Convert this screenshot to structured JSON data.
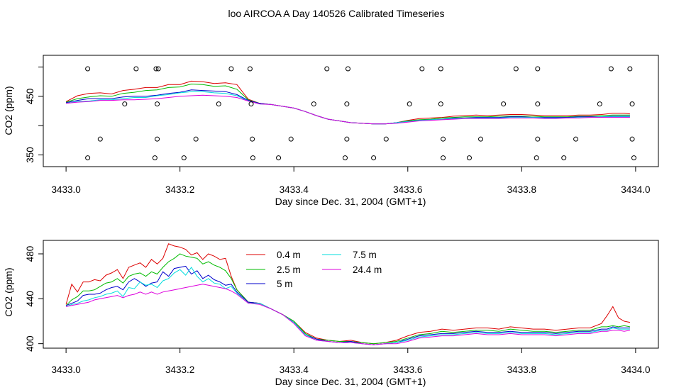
{
  "title": "loo AIRCOA A  Day 140526  Calibrated Timeseries",
  "colors": {
    "0.4 m": "#dd0000",
    "2.5 m": "#00bb00",
    "5 m": "#0000cc",
    "7.5 m": "#00dddd",
    "24.4 m": "#dd00dd"
  },
  "chart_data": [
    {
      "type": "line",
      "xlabel": "Day since Dec. 31, 2004 (GMT+1)",
      "ylabel": "CO2 (ppm)",
      "xlim": [
        3432.96,
        3434.04
      ],
      "ylim": [
        330,
        520
      ],
      "x_ticks": [
        "3433.0",
        "3433.2",
        "3433.4",
        "3433.6",
        "3433.8",
        "3434.0"
      ],
      "y_ticks": [
        "350",
        "450"
      ],
      "x": [
        3433.0,
        3433.02,
        3433.04,
        3433.06,
        3433.08,
        3433.1,
        3433.12,
        3433.14,
        3433.16,
        3433.18,
        3433.2,
        3433.22,
        3433.24,
        3433.26,
        3433.28,
        3433.3,
        3433.32,
        3433.34,
        3433.36,
        3433.38,
        3433.4,
        3433.42,
        3433.44,
        3433.46,
        3433.48,
        3433.5,
        3433.52,
        3433.54,
        3433.56,
        3433.58,
        3433.6,
        3433.62,
        3433.64,
        3433.66,
        3433.68,
        3433.7,
        3433.72,
        3433.74,
        3433.76,
        3433.78,
        3433.8,
        3433.82,
        3433.84,
        3433.86,
        3433.88,
        3433.9,
        3433.92,
        3433.94,
        3433.96,
        3433.98,
        3433.99
      ],
      "series": [
        {
          "name": "0.4 m",
          "values": [
            441,
            451,
            455,
            456,
            454,
            460,
            462,
            465,
            465,
            470,
            470,
            476,
            475,
            472,
            473,
            470,
            445,
            438,
            436,
            433,
            430,
            424,
            417,
            411,
            408,
            405,
            404,
            403,
            403,
            405,
            409,
            412,
            413,
            414,
            416,
            417,
            418,
            417,
            418,
            419,
            419,
            418,
            417,
            417,
            417,
            418,
            418,
            419,
            421,
            421,
            420
          ]
        },
        {
          "name": "2.5 m",
          "values": [
            440,
            446,
            449,
            451,
            450,
            455,
            457,
            460,
            461,
            465,
            466,
            471,
            470,
            467,
            468,
            462,
            444,
            438,
            436,
            433,
            430,
            424,
            417,
            411,
            408,
            405,
            404,
            403,
            403,
            405,
            408,
            410,
            411,
            413,
            414,
            415,
            415,
            415,
            416,
            416,
            416,
            416,
            415,
            415,
            415,
            416,
            416,
            417,
            418,
            418,
            418
          ]
        },
        {
          "name": "5 m",
          "values": [
            439,
            443,
            446,
            446,
            446,
            449,
            450,
            450,
            452,
            455,
            457,
            461,
            460,
            459,
            458,
            453,
            443,
            438,
            436,
            433,
            430,
            424,
            417,
            411,
            408,
            405,
            404,
            403,
            403,
            405,
            407,
            409,
            410,
            411,
            413,
            413,
            414,
            414,
            414,
            415,
            415,
            414,
            414,
            414,
            414,
            415,
            415,
            415,
            416,
            416,
            416
          ]
        },
        {
          "name": "7.5 m",
          "values": [
            438,
            441,
            442,
            444,
            444,
            446,
            448,
            448,
            451,
            453,
            456,
            458,
            458,
            456,
            455,
            451,
            442,
            437,
            436,
            433,
            430,
            424,
            417,
            411,
            408,
            405,
            404,
            403,
            403,
            405,
            407,
            409,
            410,
            411,
            412,
            413,
            413,
            413,
            413,
            414,
            414,
            414,
            413,
            413,
            413,
            414,
            414,
            415,
            415,
            415,
            415
          ]
        },
        {
          "name": "24.4 m",
          "values": [
            438,
            440,
            441,
            443,
            443,
            444,
            444,
            445,
            446,
            448,
            450,
            451,
            452,
            451,
            450,
            448,
            442,
            437,
            436,
            433,
            430,
            424,
            417,
            411,
            408,
            405,
            404,
            403,
            403,
            404,
            406,
            408,
            409,
            410,
            411,
            412,
            412,
            412,
            412,
            413,
            413,
            413,
            412,
            412,
            413,
            413,
            414,
            414,
            414,
            414,
            414
          ]
        }
      ],
      "points": {
        "x": [
          3433.038,
          3433.123,
          3433.158,
          3433.162,
          3433.29,
          3433.323,
          3433.458,
          3433.495,
          3433.625,
          3433.658,
          3433.79,
          3433.828,
          3433.957,
          3433.99,
          3433.103,
          3433.16,
          3433.268,
          3433.325,
          3433.435,
          3433.493,
          3433.603,
          3433.658,
          3433.768,
          3433.828,
          3433.937,
          3433.994,
          3433.06,
          3433.16,
          3433.228,
          3433.327,
          3433.395,
          3433.493,
          3433.562,
          3433.662,
          3433.728,
          3433.828,
          3433.895,
          3433.994,
          3433.038,
          3433.156,
          3433.207,
          3433.328,
          3433.373,
          3433.49,
          3433.54,
          3433.662,
          3433.708,
          3433.826,
          3433.874,
          3433.997
        ],
        "y": [
          497,
          497,
          497,
          497,
          497,
          497,
          497,
          497,
          497,
          497,
          497,
          497,
          497,
          497,
          437,
          437,
          437,
          437,
          437,
          437,
          437,
          437,
          437,
          437,
          437,
          437,
          377,
          377,
          377,
          377,
          377,
          377,
          377,
          377,
          377,
          377,
          377,
          377,
          345,
          345,
          345,
          345,
          345,
          345,
          345,
          345,
          345,
          345,
          345,
          345
        ]
      }
    },
    {
      "type": "line",
      "xlabel": "Day since Dec. 31, 2004 (GMT+1)",
      "ylabel": "CO2 (ppm)",
      "xlim": [
        3432.96,
        3434.04
      ],
      "ylim": [
        396,
        492
      ],
      "x_ticks": [
        "3433.0",
        "3433.2",
        "3433.4",
        "3433.6",
        "3433.8",
        "3434.0"
      ],
      "y_ticks": [
        "400",
        "440",
        "480"
      ],
      "legend": [
        "0.4 m",
        "2.5 m",
        "5 m",
        "7.5 m",
        "24.4 m"
      ],
      "x": [
        3433.0,
        3433.01,
        3433.02,
        3433.03,
        3433.04,
        3433.05,
        3433.06,
        3433.07,
        3433.08,
        3433.09,
        3433.1,
        3433.11,
        3433.12,
        3433.13,
        3433.14,
        3433.15,
        3433.16,
        3433.17,
        3433.18,
        3433.19,
        3433.2,
        3433.21,
        3433.22,
        3433.23,
        3433.24,
        3433.25,
        3433.26,
        3433.27,
        3433.28,
        3433.29,
        3433.3,
        3433.32,
        3433.34,
        3433.36,
        3433.38,
        3433.4,
        3433.42,
        3433.44,
        3433.46,
        3433.48,
        3433.5,
        3433.52,
        3433.54,
        3433.56,
        3433.58,
        3433.6,
        3433.62,
        3433.64,
        3433.66,
        3433.68,
        3433.7,
        3433.72,
        3433.74,
        3433.76,
        3433.78,
        3433.8,
        3433.82,
        3433.84,
        3433.86,
        3433.88,
        3433.9,
        3433.92,
        3433.94,
        3433.95,
        3433.96,
        3433.97,
        3433.98,
        3433.99
      ],
      "series": [
        {
          "name": "0.4 m",
          "values": [
            435,
            453,
            446,
            455,
            455,
            457,
            456,
            461,
            463,
            466,
            458,
            468,
            470,
            472,
            468,
            475,
            471,
            476,
            489,
            487,
            486,
            484,
            479,
            481,
            475,
            480,
            478,
            475,
            476,
            460,
            448,
            437,
            436,
            431,
            426,
            420,
            410,
            405,
            403,
            402,
            403,
            401,
            400,
            401,
            403,
            407,
            410,
            411,
            413,
            412,
            413,
            414,
            414,
            413,
            415,
            414,
            413,
            413,
            412,
            413,
            414,
            414,
            418,
            425,
            433,
            423,
            420,
            419
          ]
        },
        {
          "name": "2.5 m",
          "values": [
            434,
            439,
            442,
            447,
            447,
            448,
            451,
            454,
            455,
            458,
            454,
            460,
            462,
            463,
            460,
            464,
            462,
            468,
            473,
            476,
            480,
            478,
            477,
            476,
            471,
            473,
            470,
            468,
            465,
            458,
            448,
            437,
            436,
            431,
            426,
            420,
            409,
            404,
            403,
            402,
            402,
            401,
            400,
            401,
            402,
            405,
            408,
            409,
            411,
            410,
            411,
            412,
            412,
            411,
            413,
            412,
            411,
            411,
            410,
            411,
            412,
            412,
            415,
            415,
            416,
            415,
            416,
            415
          ]
        },
        {
          "name": "5 m",
          "values": [
            434,
            436,
            438,
            443,
            444,
            444,
            445,
            448,
            450,
            451,
            448,
            455,
            458,
            455,
            451,
            454,
            455,
            464,
            460,
            467,
            468,
            469,
            462,
            465,
            458,
            461,
            457,
            455,
            452,
            453,
            446,
            437,
            436,
            431,
            426,
            419,
            408,
            404,
            402,
            401,
            402,
            400,
            399,
            400,
            401,
            404,
            407,
            408,
            409,
            409,
            410,
            411,
            410,
            410,
            411,
            410,
            410,
            410,
            409,
            410,
            411,
            411,
            413,
            413,
            415,
            414,
            414,
            414
          ]
        },
        {
          "name": "7.5 m",
          "values": [
            433,
            435,
            436,
            438,
            439,
            441,
            442,
            444,
            445,
            447,
            442,
            450,
            449,
            455,
            452,
            453,
            450,
            456,
            458,
            463,
            466,
            461,
            468,
            460,
            455,
            458,
            454,
            453,
            449,
            451,
            445,
            436,
            436,
            431,
            426,
            419,
            408,
            403,
            402,
            401,
            401,
            400,
            399,
            400,
            401,
            403,
            406,
            407,
            408,
            408,
            409,
            410,
            409,
            409,
            410,
            409,
            409,
            409,
            408,
            409,
            410,
            410,
            412,
            412,
            414,
            413,
            413,
            413
          ]
        },
        {
          "name": "24.4 m",
          "values": [
            433,
            434,
            435,
            436,
            437,
            439,
            440,
            441,
            442,
            443,
            441,
            443,
            444,
            446,
            444,
            446,
            444,
            446,
            447,
            448,
            449,
            450,
            451,
            452,
            453,
            452,
            451,
            450,
            449,
            447,
            444,
            436,
            435,
            431,
            426,
            418,
            407,
            403,
            402,
            401,
            401,
            400,
            399,
            400,
            400,
            402,
            405,
            406,
            407,
            407,
            408,
            409,
            408,
            408,
            409,
            408,
            408,
            408,
            407,
            408,
            409,
            409,
            411,
            411,
            412,
            412,
            411,
            412
          ]
        }
      ]
    }
  ]
}
